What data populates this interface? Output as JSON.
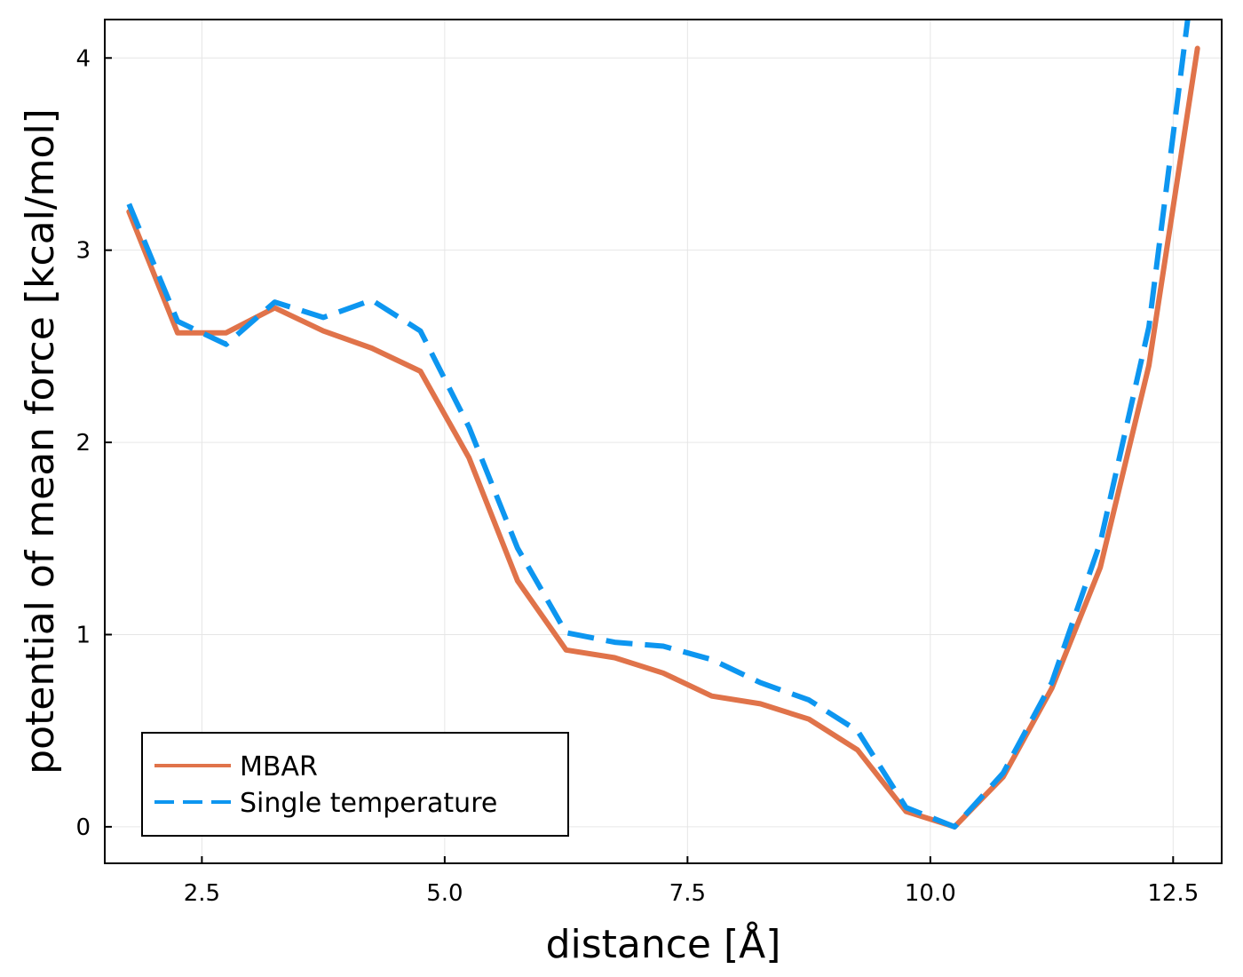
{
  "chart_data": {
    "type": "line",
    "xlabel": "distance [Å]",
    "ylabel": "potential of mean force [kcal/mol]",
    "xlim": [
      1.5,
      13.0
    ],
    "ylim": [
      -0.19,
      4.2
    ],
    "xticks": [
      2.5,
      5.0,
      7.5,
      10.0,
      12.5
    ],
    "xtick_labels": [
      "2.5",
      "5.0",
      "7.5",
      "10.0",
      "12.5"
    ],
    "yticks": [
      0,
      1,
      2,
      3,
      4
    ],
    "ytick_labels": [
      "0",
      "1",
      "2",
      "3",
      "4"
    ],
    "grid": true,
    "legend_position": "bottom-left",
    "series": [
      {
        "name": "MBAR",
        "color": "#e0734a",
        "style": "solid",
        "x": [
          1.75,
          2.25,
          2.75,
          3.25,
          3.75,
          4.25,
          4.75,
          5.25,
          5.75,
          6.25,
          6.75,
          7.25,
          7.75,
          8.25,
          8.75,
          9.25,
          9.75,
          10.25,
          10.75,
          11.25,
          11.75,
          12.25,
          12.75
        ],
        "y": [
          3.2,
          2.57,
          2.57,
          2.7,
          2.58,
          2.49,
          2.37,
          1.92,
          1.28,
          0.92,
          0.88,
          0.8,
          0.68,
          0.64,
          0.56,
          0.4,
          0.08,
          0.0,
          0.26,
          0.72,
          1.35,
          2.4,
          4.05
        ]
      },
      {
        "name": "Single temperature",
        "color": "#0d96f0",
        "style": "dashed",
        "x": [
          1.75,
          2.25,
          2.75,
          3.25,
          3.75,
          4.25,
          4.75,
          5.25,
          5.75,
          6.25,
          6.75,
          7.25,
          7.75,
          8.25,
          8.75,
          9.25,
          9.75,
          10.25,
          10.75,
          11.25,
          11.75,
          12.25,
          12.65
        ],
        "y": [
          3.24,
          2.63,
          2.51,
          2.73,
          2.65,
          2.74,
          2.58,
          2.08,
          1.45,
          1.01,
          0.96,
          0.94,
          0.87,
          0.75,
          0.66,
          0.5,
          0.1,
          0.0,
          0.28,
          0.75,
          1.48,
          2.6,
          4.2
        ]
      }
    ]
  }
}
